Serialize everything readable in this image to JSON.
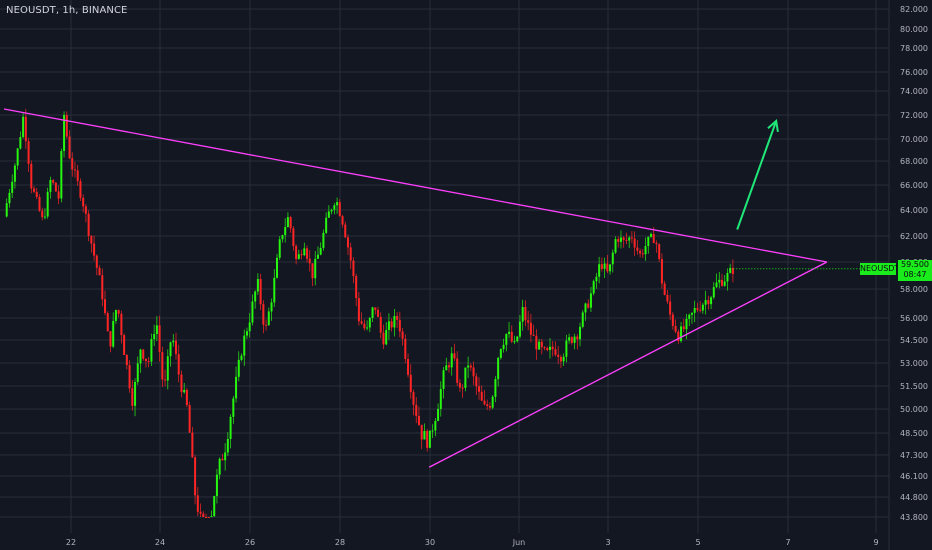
{
  "chart_data": {
    "type": "candlestick",
    "title": "NEOUSDT, 1h, BINANCE",
    "symbol_label": "NEOUSDT",
    "last_price": "59.500",
    "countdown": "08:47",
    "y_ticks": [
      "82.000",
      "80.000",
      "78.000",
      "76.000",
      "74.000",
      "72.000",
      "70.000",
      "68.000",
      "66.000",
      "64.000",
      "62.000",
      "60.000",
      "58.000",
      "56.000",
      "54.500",
      "53.000",
      "51.500",
      "50.000",
      "48.500",
      "47.300",
      "46.100",
      "44.800",
      "43.800"
    ],
    "x_ticks": [
      "22",
      "24",
      "26",
      "28",
      "30",
      "Jun",
      "3",
      "5",
      "7",
      "9"
    ],
    "price_path": [
      {
        "x": 0,
        "p": 63.5
      },
      {
        "x": 1.5,
        "p": 68
      },
      {
        "x": 2.5,
        "p": 72
      },
      {
        "x": 3.5,
        "p": 66
      },
      {
        "x": 5,
        "p": 63
      },
      {
        "x": 6,
        "p": 66.5
      },
      {
        "x": 7,
        "p": 65
      },
      {
        "x": 7.7,
        "p": 72
      },
      {
        "x": 8.5,
        "p": 68
      },
      {
        "x": 10,
        "p": 65
      },
      {
        "x": 11,
        "p": 62
      },
      {
        "x": 12.5,
        "p": 58
      },
      {
        "x": 13.5,
        "p": 54
      },
      {
        "x": 14.5,
        "p": 57
      },
      {
        "x": 15.5,
        "p": 53.5
      },
      {
        "x": 16.5,
        "p": 50.5
      },
      {
        "x": 17.5,
        "p": 54
      },
      {
        "x": 18.5,
        "p": 53
      },
      {
        "x": 19.5,
        "p": 56
      },
      {
        "x": 20.5,
        "p": 51
      },
      {
        "x": 21.5,
        "p": 55
      },
      {
        "x": 22.5,
        "p": 52
      },
      {
        "x": 23.5,
        "p": 50
      },
      {
        "x": 24.5,
        "p": 45
      },
      {
        "x": 25.5,
        "p": 43
      },
      {
        "x": 26.5,
        "p": 43.8
      },
      {
        "x": 27.5,
        "p": 46.5
      },
      {
        "x": 28.5,
        "p": 48
      },
      {
        "x": 29.5,
        "p": 51
      },
      {
        "x": 30.5,
        "p": 54
      },
      {
        "x": 31.5,
        "p": 56
      },
      {
        "x": 32.5,
        "p": 58.5
      },
      {
        "x": 33.5,
        "p": 55
      },
      {
        "x": 34.5,
        "p": 58
      },
      {
        "x": 35.5,
        "p": 62
      },
      {
        "x": 36.5,
        "p": 63.5
      },
      {
        "x": 37.5,
        "p": 60
      },
      {
        "x": 38.5,
        "p": 61.5
      },
      {
        "x": 39.5,
        "p": 59
      },
      {
        "x": 40.5,
        "p": 61
      },
      {
        "x": 41.5,
        "p": 63.5
      },
      {
        "x": 42.5,
        "p": 65
      },
      {
        "x": 43.5,
        "p": 63
      },
      {
        "x": 44.5,
        "p": 60
      },
      {
        "x": 45.5,
        "p": 56
      },
      {
        "x": 46.5,
        "p": 55
      },
      {
        "x": 47.5,
        "p": 57
      },
      {
        "x": 48.5,
        "p": 54.5
      },
      {
        "x": 49.5,
        "p": 55.5
      },
      {
        "x": 50.5,
        "p": 56
      },
      {
        "x": 51.5,
        "p": 53.5
      },
      {
        "x": 52.5,
        "p": 50.5
      },
      {
        "x": 53.5,
        "p": 48.5
      },
      {
        "x": 54.5,
        "p": 48
      },
      {
        "x": 55.5,
        "p": 50
      },
      {
        "x": 56.5,
        "p": 52.5
      },
      {
        "x": 57.5,
        "p": 53.5
      },
      {
        "x": 58.5,
        "p": 51
      },
      {
        "x": 59.5,
        "p": 53
      },
      {
        "x": 60.5,
        "p": 51.5
      },
      {
        "x": 61.5,
        "p": 50
      },
      {
        "x": 62.5,
        "p": 50.5
      },
      {
        "x": 63.5,
        "p": 54
      },
      {
        "x": 64.5,
        "p": 55
      },
      {
        "x": 65.5,
        "p": 54
      },
      {
        "x": 66.5,
        "p": 56.5
      },
      {
        "x": 67.5,
        "p": 55
      },
      {
        "x": 68.5,
        "p": 54
      },
      {
        "x": 69.5,
        "p": 53.5
      },
      {
        "x": 70.5,
        "p": 54
      },
      {
        "x": 71.5,
        "p": 53.5
      },
      {
        "x": 72.5,
        "p": 54.5
      },
      {
        "x": 73.5,
        "p": 55
      },
      {
        "x": 74.5,
        "p": 56.5
      },
      {
        "x": 75.5,
        "p": 58
      },
      {
        "x": 76.5,
        "p": 60
      },
      {
        "x": 77.5,
        "p": 59
      },
      {
        "x": 78.5,
        "p": 62
      },
      {
        "x": 79.5,
        "p": 61.5
      },
      {
        "x": 80.5,
        "p": 62
      },
      {
        "x": 81.5,
        "p": 60.5
      },
      {
        "x": 82.5,
        "p": 61.5
      },
      {
        "x": 83.5,
        "p": 62
      },
      {
        "x": 84.5,
        "p": 58
      },
      {
        "x": 85.5,
        "p": 56
      },
      {
        "x": 86.5,
        "p": 54.8
      },
      {
        "x": 87.5,
        "p": 55.5
      },
      {
        "x": 88.5,
        "p": 56.5
      },
      {
        "x": 89.5,
        "p": 57
      },
      {
        "x": 90.5,
        "p": 57.5
      },
      {
        "x": 91.5,
        "p": 58.5
      },
      {
        "x": 92.5,
        "p": 58.8
      },
      {
        "x": 93.5,
        "p": 59.5
      }
    ],
    "trendline_upper": {
      "from": {
        "x": 0,
        "p": 72.5
      },
      "to": {
        "x": 105.5,
        "p": 60
      }
    },
    "trendline_lower": {
      "from": {
        "x": 54.5,
        "p": 46.6
      },
      "to": {
        "x": 105.5,
        "p": 60
      }
    },
    "arrow": {
      "from": {
        "x": 94,
        "p": 62.5
      },
      "to": {
        "x": 99,
        "p": 71.5
      }
    },
    "colors": {
      "background": "#131722",
      "grid": "#2a2e39",
      "axis_text": "#b2b5be",
      "up": "#26f510",
      "down": "#ff2525",
      "trendline": "#ff40ff",
      "arrow": "#1fe879",
      "badge": "#1aeb1a"
    }
  }
}
